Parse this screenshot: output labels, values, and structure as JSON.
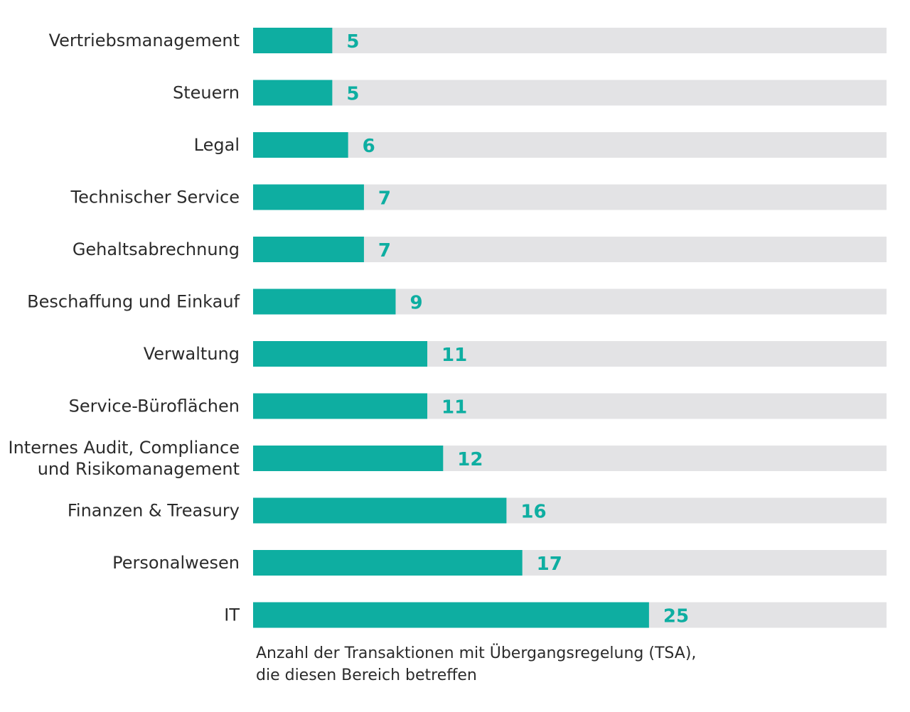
{
  "chart_data": {
    "type": "bar",
    "orientation": "horizontal",
    "categories": [
      [
        "Vertriebsmanagement"
      ],
      [
        "Steuern"
      ],
      [
        "Legal"
      ],
      [
        "Technischer Service"
      ],
      [
        "Gehaltsabrechnung"
      ],
      [
        "Beschaffung und Einkauf"
      ],
      [
        "Verwaltung"
      ],
      [
        "Service-Büroflächen"
      ],
      [
        "Internes Audit, Compliance",
        "und Risikomanagement"
      ],
      [
        "Finanzen & Treasury"
      ],
      [
        "Personalwesen"
      ],
      [
        "IT"
      ]
    ],
    "values": [
      5,
      5,
      6,
      7,
      7,
      9,
      11,
      11,
      12,
      16,
      17,
      25
    ],
    "value_labels": [
      "5",
      "5",
      "6",
      "7",
      "7",
      "9",
      "11",
      "11",
      "12",
      "16",
      "17",
      "25"
    ],
    "xlim": [
      0,
      40
    ],
    "xlabel_lines": [
      "Anzahl der Transaktionen mit Übergangsregelung (TSA),",
      "die diesen Bereich betreffen"
    ],
    "grid": false,
    "legend": "none",
    "colors": {
      "bar": "#0eaea1",
      "track": "#e3e3e5",
      "value_text": "#0eaea1",
      "label_text": "#2b2b2b"
    }
  }
}
